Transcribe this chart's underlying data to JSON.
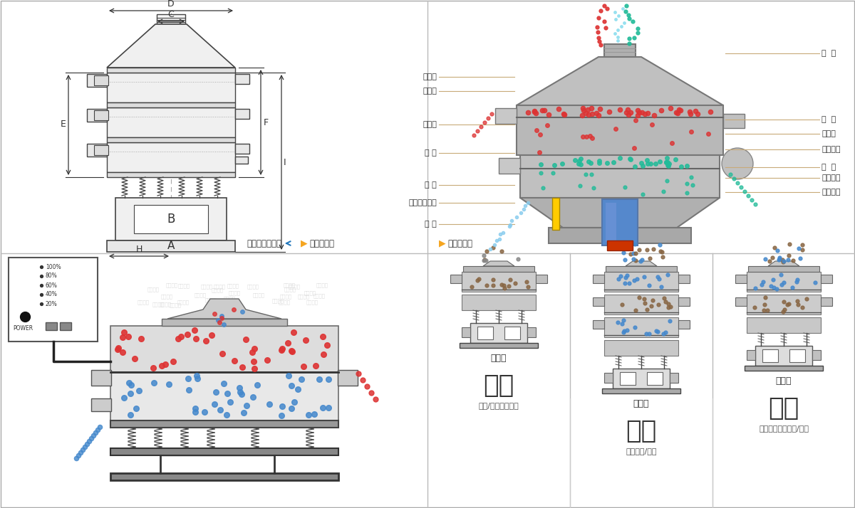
{
  "bg_color": "#ffffff",
  "border_color": "#cccccc",
  "nav_left": "外形尺寸示意图",
  "nav_right": "结构示意图",
  "left_labels_struct": [
    "进料口",
    "防尘盖",
    "出料口",
    "束 环",
    "弹 簧",
    "运输固定螺栓",
    "机 座"
  ],
  "right_labels_struct": [
    "篩  网",
    "网  架",
    "加重块",
    "上部重锤",
    "篩  盘",
    "振动电机",
    "下部重锤"
  ],
  "bottom_labels": [
    "单层式",
    "三层式",
    "双层式"
  ],
  "bottom_funcs": [
    "分级",
    "过滤",
    "除杂"
  ],
  "bottom_descs": [
    "颗粒/粉末准确分级",
    "去除异物/结块",
    "去除液体中的颗粒/异物"
  ],
  "dim_color": "#333333",
  "draw_color": "#444444",
  "label_line_color": "#c8aa78",
  "red_dot": "#dd3333",
  "blue_dot": "#4488cc",
  "green_dot": "#22aa88",
  "teal_dot": "#44bbcc",
  "brown_dot": "#886644",
  "gray_dot": "#888888"
}
